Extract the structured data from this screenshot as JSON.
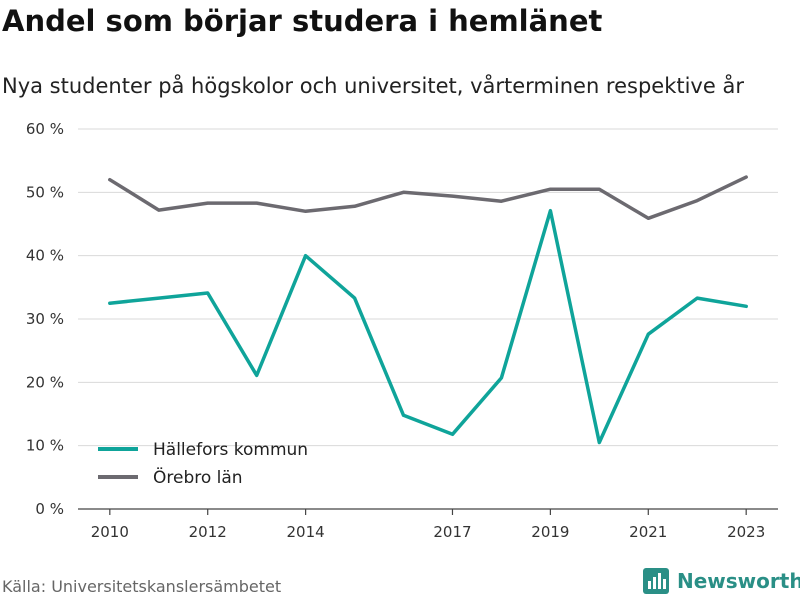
{
  "header": {
    "title": "Andel som börjar studera i hemlänet",
    "subtitle": "Nya studenter på högskolor och universitet, vårterminen respektive år"
  },
  "footer": {
    "source": "Källa: Universitetskanslersämbetet",
    "brand": "Newsworthy"
  },
  "icons": {
    "brand_logo": "bar-chart-logo-icon"
  },
  "colors": {
    "hallefors": "#0fa49a",
    "orebro": "#6c6a70",
    "grid": "#d9d9d9",
    "axis": "#444444",
    "brand": "#2a8f86"
  },
  "chart_data": {
    "type": "line",
    "title": "Andel som börjar studera i hemlänet",
    "subtitle": "Nya studenter på högskolor och universitet, vårterminen respektive år",
    "x": [
      2010,
      2011,
      2012,
      2013,
      2014,
      2015,
      2016,
      2017,
      2018,
      2019,
      2020,
      2021,
      2022,
      2023
    ],
    "x_tick_labels": [
      "2010",
      "2012",
      "2014",
      "2017",
      "2019",
      "2021",
      "2023"
    ],
    "x_tick_values": [
      2010,
      2012,
      2014,
      2017,
      2019,
      2021,
      2023
    ],
    "xlim": [
      2009.35,
      2023.65
    ],
    "ylim": [
      0,
      60
    ],
    "y_ticks": [
      0,
      10,
      20,
      30,
      40,
      50,
      60
    ],
    "y_tick_labels": [
      "0 %",
      "10 %",
      "20 %",
      "30 %",
      "40 %",
      "50 %",
      "60 %"
    ],
    "grid": true,
    "legend_position": "bottom-left",
    "series": [
      {
        "name": "Hällefors kommun",
        "color": "#0fa49a",
        "values": [
          32.5,
          33.3,
          34.1,
          21.1,
          40.0,
          33.3,
          14.8,
          11.8,
          20.7,
          47.1,
          10.5,
          27.6,
          33.3,
          32.0
        ]
      },
      {
        "name": "Örebro län",
        "color": "#6c6a70",
        "values": [
          52.0,
          47.2,
          48.3,
          48.3,
          47.0,
          47.8,
          50.0,
          49.4,
          48.6,
          50.5,
          50.5,
          45.9,
          48.7,
          52.4
        ]
      }
    ]
  }
}
